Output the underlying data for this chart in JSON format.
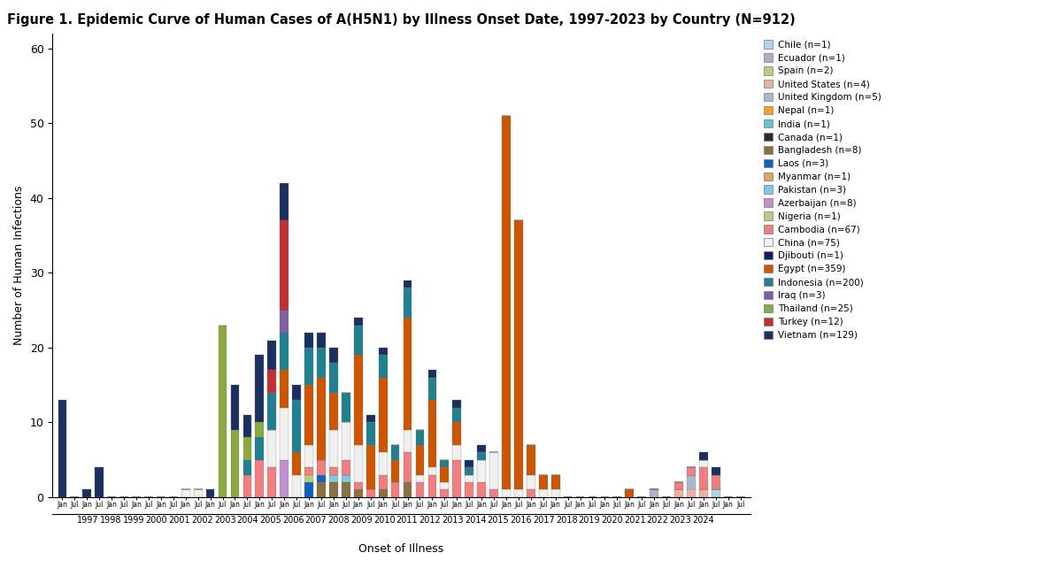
{
  "title": "Figure 1. Epidemic Curve of Human Cases of A(H5N1) by Illness Onset Date, 1997-2023 by Country (N=912)",
  "xlabel": "Onset of Illness",
  "ylabel": "Number of Human Infections",
  "ylim": [
    0,
    62
  ],
  "yticks": [
    0,
    10,
    20,
    30,
    40,
    50,
    60
  ],
  "countries": [
    {
      "name": "Chile (n=1)",
      "color": "#aed6e8"
    },
    {
      "name": "Ecuador (n=1)",
      "color": "#b8a8c8"
    },
    {
      "name": "Spain (n=2)",
      "color": "#c8c87a"
    },
    {
      "name": "United States (n=4)",
      "color": "#f0b0a0"
    },
    {
      "name": "United Kingdom (n=5)",
      "color": "#a8b8d0"
    },
    {
      "name": "Nepal (n=1)",
      "color": "#f5a020"
    },
    {
      "name": "India (n=1)",
      "color": "#60c8c8"
    },
    {
      "name": "Canada (n=1)",
      "color": "#2a2a2a"
    },
    {
      "name": "Bangladesh (n=8)",
      "color": "#8b7040"
    },
    {
      "name": "Laos (n=3)",
      "color": "#1060c0"
    },
    {
      "name": "Myanmar (n=1)",
      "color": "#e8a060"
    },
    {
      "name": "Pakistan (n=3)",
      "color": "#80c8e8"
    },
    {
      "name": "Azerbaijan (n=8)",
      "color": "#c090d0"
    },
    {
      "name": "Nigeria (n=1)",
      "color": "#b8cc80"
    },
    {
      "name": "Cambodia (n=67)",
      "color": "#f08080"
    },
    {
      "name": "China (n=75)",
      "color": "#f0f0f0"
    },
    {
      "name": "Djibouti (n=1)",
      "color": "#102060"
    },
    {
      "name": "Egypt (n=359)",
      "color": "#cc5500"
    },
    {
      "name": "Indonesia (n=200)",
      "color": "#208090"
    },
    {
      "name": "Iraq (n=3)",
      "color": "#8060a8"
    },
    {
      "name": "Thailand (n=25)",
      "color": "#8aaa40"
    },
    {
      "name": "Turkey (n=12)",
      "color": "#c03030"
    },
    {
      "name": "Vietnam (n=129)",
      "color": "#1a3060"
    }
  ],
  "bar_data": {
    "1997_Jan": {
      "Vietnam": 13
    },
    "1997_Jul": {},
    "1998_Jan": {
      "Vietnam": 1
    },
    "1998_Jul": {
      "Vietnam": 4
    },
    "1999_Jan": {},
    "1999_Jul": {},
    "2000_Jan": {},
    "2000_Jul": {},
    "2001_Jan": {},
    "2001_Jul": {},
    "2002_Jan": {
      "China": 1
    },
    "2002_Jul": {
      "China": 1
    },
    "2003_Jan": {
      "Vietnam": 1
    },
    "2003_Jul": {
      "Thailand": 23
    },
    "2004_Jan": {
      "Vietnam": 6,
      "Thailand": 9
    },
    "2004_Jul": {
      "Vietnam": 3,
      "Thailand": 3,
      "Cambodia": 3,
      "Indonesia": 2
    },
    "2005_Jan": {
      "Vietnam": 9,
      "Indonesia": 3,
      "Cambodia": 5,
      "Thailand": 2
    },
    "2005_Jul": {
      "Vietnam": 4,
      "Indonesia": 5,
      "Cambodia": 4,
      "China": 5,
      "Turkey": 3
    },
    "2006_Jan": {
      "Vietnam": 5,
      "Indonesia": 5,
      "Turkey": 12,
      "China": 7,
      "Egypt": 5,
      "Azerbaijan": 5,
      "Iraq": 3
    },
    "2006_Jul": {
      "Vietnam": 2,
      "Indonesia": 7,
      "China": 3,
      "Egypt": 3
    },
    "2007_Jan": {
      "Vietnam": 2,
      "Indonesia": 5,
      "China": 3,
      "Egypt": 8,
      "Nigeria": 1,
      "Laos": 2,
      "Cambodia": 1
    },
    "2007_Jul": {
      "Vietnam": 2,
      "Indonesia": 4,
      "Egypt": 11,
      "Laos": 1,
      "Cambodia": 2,
      "Bangladesh": 2
    },
    "2008_Jan": {
      "Vietnam": 2,
      "Indonesia": 4,
      "China": 5,
      "Egypt": 5,
      "Bangladesh": 2,
      "Pakistan": 1,
      "Cambodia": 1
    },
    "2008_Jul": {
      "Indonesia": 4,
      "China": 5,
      "Cambodia": 2,
      "Bangladesh": 2,
      "Pakistan": 1
    },
    "2009_Jan": {
      "Vietnam": 1,
      "Indonesia": 4,
      "China": 5,
      "Egypt": 12,
      "Cambodia": 1,
      "Bangladesh": 1
    },
    "2009_Jul": {
      "Vietnam": 1,
      "Indonesia": 3,
      "Egypt": 6,
      "Cambodia": 1
    },
    "2010_Jan": {
      "Vietnam": 1,
      "Indonesia": 3,
      "China": 3,
      "Egypt": 10,
      "Cambodia": 2,
      "Bangladesh": 1
    },
    "2010_Jul": {
      "Indonesia": 2,
      "Egypt": 3,
      "Cambodia": 2
    },
    "2011_Jan": {
      "Vietnam": 1,
      "Indonesia": 4,
      "China": 3,
      "Egypt": 15,
      "Cambodia": 4,
      "Bangladesh": 2
    },
    "2011_Jul": {
      "Indonesia": 2,
      "China": 1,
      "Egypt": 4,
      "Cambodia": 2
    },
    "2012_Jan": {
      "Vietnam": 1,
      "Indonesia": 3,
      "China": 1,
      "Egypt": 9,
      "Cambodia": 3
    },
    "2012_Jul": {
      "Indonesia": 1,
      "China": 1,
      "Egypt": 2,
      "Cambodia": 1
    },
    "2013_Jan": {
      "Vietnam": 1,
      "Indonesia": 2,
      "China": 2,
      "Egypt": 3,
      "Cambodia": 5
    },
    "2013_Jul": {
      "Vietnam": 1,
      "Indonesia": 1,
      "China": 1,
      "Cambodia": 2
    },
    "2014_Jan": {
      "Vietnam": 1,
      "Indonesia": 1,
      "China": 3,
      "Cambodia": 2
    },
    "2014_Jul": {
      "China": 5,
      "Cambodia": 1
    },
    "2015_Jan": {
      "Egypt": 50,
      "China": 1
    },
    "2015_Jul": {
      "Egypt": 36,
      "China": 1
    },
    "2016_Jan": {
      "Egypt": 4,
      "China": 2,
      "Cambodia": 1
    },
    "2016_Jul": {
      "Egypt": 2,
      "China": 1
    },
    "2017_Jan": {
      "Egypt": 2,
      "China": 1
    },
    "2017_Jul": {},
    "2018_Jan": {},
    "2018_Jul": {},
    "2019_Jan": {},
    "2019_Jul": {},
    "2020_Jan": {
      "Egypt": 1
    },
    "2020_Jul": {},
    "2021_Jan": {
      "United Kingdom": 1
    },
    "2021_Jul": {},
    "2022_Jan": {
      "Cambodia": 1,
      "United States": 1
    },
    "2022_Jul": {
      "Cambodia": 1,
      "United Kingdom": 2,
      "United States": 1
    },
    "2023_Jan": {
      "Cambodia": 3,
      "United States": 1,
      "China": 1,
      "Vietnam": 1
    },
    "2023_Jul": {
      "Cambodia": 2,
      "Vietnam": 1,
      "Chile": 1
    }
  },
  "stack_order": [
    "Chile",
    "Ecuador",
    "Spain",
    "United States",
    "United Kingdom",
    "Nepal",
    "India",
    "Canada",
    "Bangladesh",
    "Laos",
    "Myanmar",
    "Pakistan",
    "Azerbaijan",
    "Nigeria",
    "Cambodia",
    "China",
    "Djibouti",
    "Egypt",
    "Indonesia",
    "Iraq",
    "Thailand",
    "Turkey",
    "Vietnam"
  ]
}
